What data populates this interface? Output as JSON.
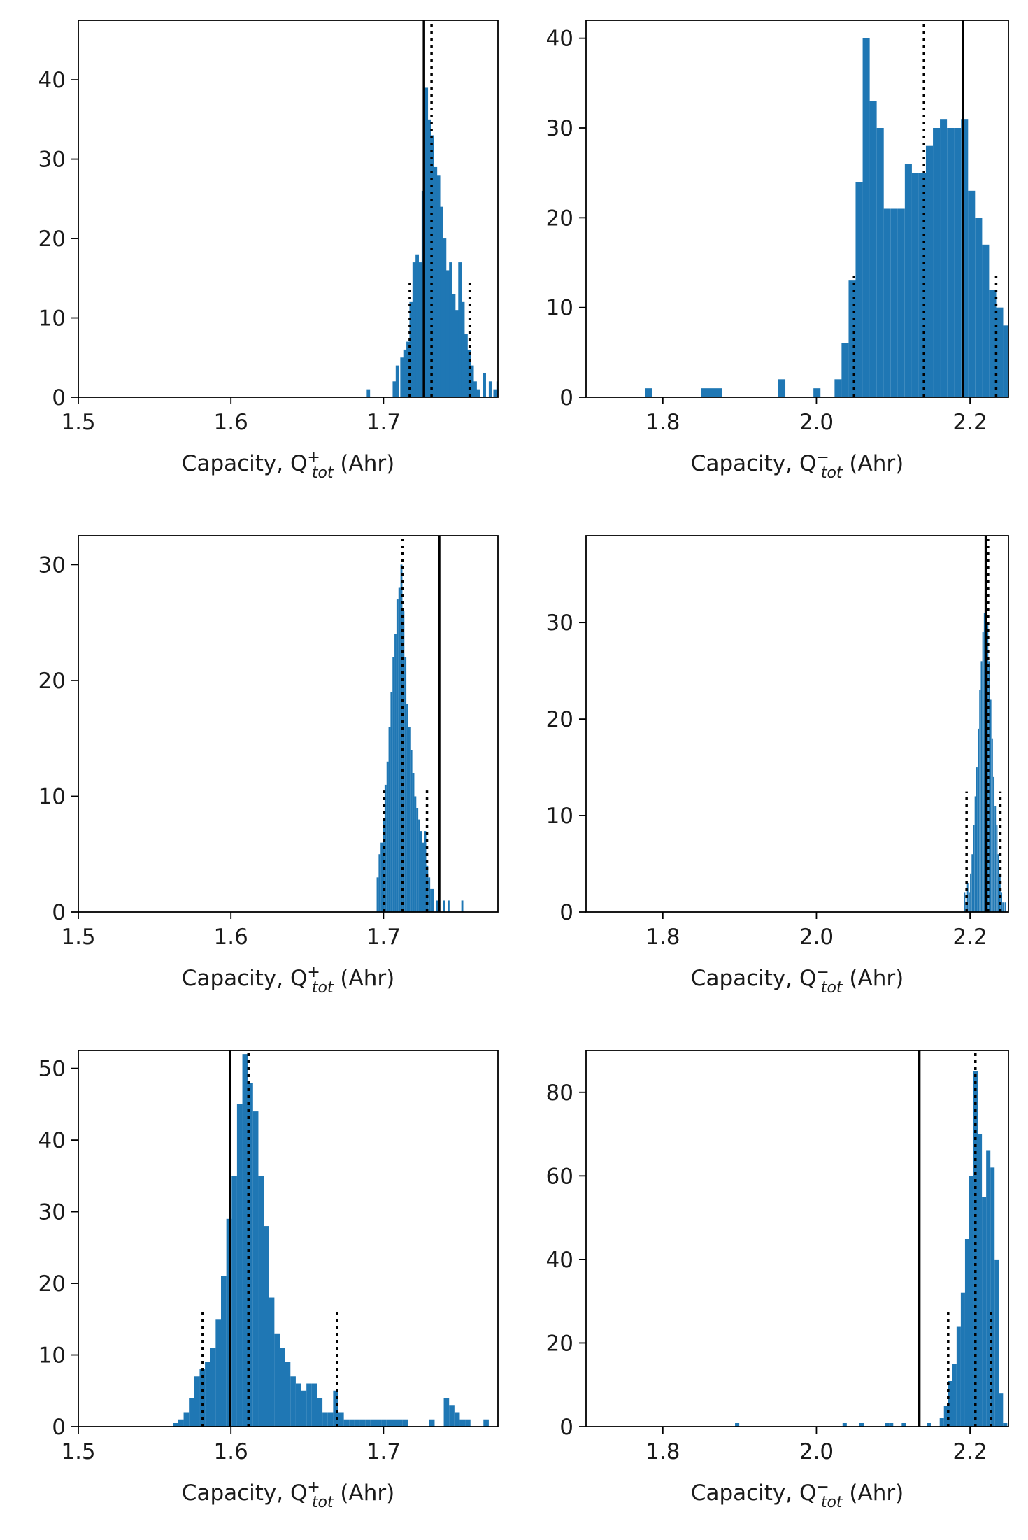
{
  "colors": {
    "bar": "#1f77b4",
    "line": "#000000",
    "frame": "#000000"
  },
  "chart_data": [
    {
      "type": "bar",
      "panel": "top-left",
      "xlabel": {
        "prefix": "Capacity, Q",
        "sup": "+",
        "sub": "tot",
        "suffix": " (Ahr)"
      },
      "xlim": [
        1.5,
        1.775
      ],
      "ylim": [
        0,
        47.5
      ],
      "xticks": [
        1.5,
        1.6,
        1.7
      ],
      "xtick_labels": [
        "1.5",
        "1.6",
        "1.7"
      ],
      "yticks": [
        0,
        10,
        20,
        30,
        40
      ],
      "ytick_labels": [
        "0",
        "10",
        "20",
        "30",
        "40"
      ],
      "bin_width": 0.0022,
      "bins": [
        [
          1.689,
          1
        ],
        [
          1.706,
          2
        ],
        [
          1.708,
          4
        ],
        [
          1.711,
          5
        ],
        [
          1.713,
          6
        ],
        [
          1.715,
          7
        ],
        [
          1.717,
          12
        ],
        [
          1.719,
          17
        ],
        [
          1.721,
          18
        ],
        [
          1.723,
          17
        ],
        [
          1.725,
          26
        ],
        [
          1.727,
          39
        ],
        [
          1.729,
          35
        ],
        [
          1.731,
          33
        ],
        [
          1.733,
          29
        ],
        [
          1.735,
          28
        ],
        [
          1.737,
          24
        ],
        [
          1.739,
          20
        ],
        [
          1.741,
          16
        ],
        [
          1.743,
          17
        ],
        [
          1.745,
          13
        ],
        [
          1.747,
          11
        ],
        [
          1.749,
          17
        ],
        [
          1.751,
          12
        ],
        [
          1.753,
          8
        ],
        [
          1.755,
          6
        ],
        [
          1.757,
          4
        ],
        [
          1.759,
          2
        ],
        [
          1.761,
          1
        ],
        [
          1.765,
          3
        ],
        [
          1.769,
          2
        ],
        [
          1.772,
          1
        ],
        [
          1.774,
          2
        ]
      ],
      "solid_lines": [
        {
          "x": 1.7265,
          "height": 47.5
        }
      ],
      "dotted_lines": [
        {
          "x": 1.7315,
          "height": 47.5
        },
        {
          "x": 1.7172,
          "height": 15
        },
        {
          "x": 1.7565,
          "height": 15
        }
      ]
    },
    {
      "type": "bar",
      "panel": "top-right",
      "xlabel": {
        "prefix": "Capacity, Q",
        "sup": "−",
        "sub": "tot",
        "suffix": " (Ahr)"
      },
      "xlim": [
        1.7,
        2.25
      ],
      "ylim": [
        0,
        42
      ],
      "xticks": [
        1.8,
        2.0,
        2.2
      ],
      "xtick_labels": [
        "1.8",
        "2.0",
        "2.2"
      ],
      "yticks": [
        0,
        10,
        20,
        30,
        40
      ],
      "ytick_labels": [
        "0",
        "10",
        "20",
        "30",
        "40"
      ],
      "bin_width": 0.00915,
      "bins": [
        [
          1.7765,
          1
        ],
        [
          1.8497,
          1
        ],
        [
          1.8589,
          1
        ],
        [
          1.868,
          1
        ],
        [
          1.9504,
          2
        ],
        [
          1.9961,
          1
        ],
        [
          2.0236,
          2
        ],
        [
          2.0327,
          6
        ],
        [
          2.0419,
          13
        ],
        [
          2.051,
          24
        ],
        [
          2.0602,
          40
        ],
        [
          2.0693,
          33
        ],
        [
          2.0785,
          30
        ],
        [
          2.0876,
          21
        ],
        [
          2.0968,
          21
        ],
        [
          2.1059,
          21
        ],
        [
          2.1151,
          26
        ],
        [
          2.1242,
          25
        ],
        [
          2.1334,
          25
        ],
        [
          2.1425,
          28
        ],
        [
          2.1517,
          30
        ],
        [
          2.1608,
          31
        ],
        [
          2.17,
          30
        ],
        [
          2.1791,
          30
        ],
        [
          2.1883,
          31
        ],
        [
          2.1974,
          23
        ],
        [
          2.2066,
          20
        ],
        [
          2.2157,
          17
        ],
        [
          2.2249,
          12
        ],
        [
          2.234,
          10
        ],
        [
          2.2432,
          8
        ]
      ],
      "solid_lines": [
        {
          "x": 2.191,
          "height": 42
        }
      ],
      "dotted_lines": [
        {
          "x": 2.14,
          "height": 42
        },
        {
          "x": 2.049,
          "height": 13.5
        },
        {
          "x": 2.234,
          "height": 13.5
        }
      ]
    },
    {
      "type": "bar",
      "panel": "middle-left",
      "xlabel": {
        "prefix": "Capacity, Q",
        "sup": "+",
        "sub": "tot",
        "suffix": " (Ahr)"
      },
      "xlim": [
        1.5,
        1.775
      ],
      "ylim": [
        0,
        32.5
      ],
      "xticks": [
        1.5,
        1.6,
        1.7
      ],
      "xtick_labels": [
        "1.5",
        "1.6",
        "1.7"
      ],
      "yticks": [
        0,
        10,
        20,
        30
      ],
      "ytick_labels": [
        "0",
        "10",
        "20",
        "30"
      ],
      "bin_width": 0.0013,
      "bins": [
        [
          1.6955,
          3
        ],
        [
          1.6968,
          5
        ],
        [
          1.6981,
          6
        ],
        [
          1.6994,
          8
        ],
        [
          1.7007,
          11
        ],
        [
          1.702,
          13
        ],
        [
          1.7033,
          16
        ],
        [
          1.7046,
          19
        ],
        [
          1.7059,
          22
        ],
        [
          1.7072,
          24
        ],
        [
          1.7085,
          27
        ],
        [
          1.7098,
          28
        ],
        [
          1.7111,
          30
        ],
        [
          1.7124,
          26
        ],
        [
          1.7137,
          22
        ],
        [
          1.715,
          18
        ],
        [
          1.7163,
          16
        ],
        [
          1.7176,
          14
        ],
        [
          1.7189,
          12
        ],
        [
          1.7202,
          10
        ],
        [
          1.7215,
          9
        ],
        [
          1.7228,
          8
        ],
        [
          1.7241,
          7
        ],
        [
          1.7254,
          6
        ],
        [
          1.7267,
          7
        ],
        [
          1.728,
          4
        ],
        [
          1.7293,
          3
        ],
        [
          1.7306,
          2
        ],
        [
          1.7319,
          2
        ],
        [
          1.7345,
          1
        ],
        [
          1.739,
          1
        ],
        [
          1.742,
          1
        ],
        [
          1.751,
          1
        ]
      ],
      "solid_lines": [
        {
          "x": 1.7365,
          "height": 32.5
        }
      ],
      "dotted_lines": [
        {
          "x": 1.7125,
          "height": 32.5
        },
        {
          "x": 1.7005,
          "height": 10.5
        },
        {
          "x": 1.7285,
          "height": 10.5
        }
      ]
    },
    {
      "type": "bar",
      "panel": "middle-right",
      "xlabel": {
        "prefix": "Capacity, Q",
        "sup": "−",
        "sub": "tot",
        "suffix": " (Ahr)"
      },
      "xlim": [
        1.7,
        2.25
      ],
      "ylim": [
        0,
        39
      ],
      "xticks": [
        1.8,
        2.0,
        2.2
      ],
      "xtick_labels": [
        "1.8",
        "2.0",
        "2.2"
      ],
      "yticks": [
        0,
        10,
        20,
        30
      ],
      "ytick_labels": [
        "0",
        "10",
        "20",
        "30"
      ],
      "bin_width": 0.0018,
      "bins": [
        [
          2.192,
          2
        ],
        [
          2.194,
          1
        ],
        [
          2.196,
          3
        ],
        [
          2.198,
          2
        ],
        [
          2.2,
          4
        ],
        [
          2.202,
          6
        ],
        [
          2.204,
          9
        ],
        [
          2.206,
          12
        ],
        [
          2.208,
          15
        ],
        [
          2.21,
          19
        ],
        [
          2.212,
          23
        ],
        [
          2.214,
          26
        ],
        [
          2.216,
          29
        ],
        [
          2.218,
          31
        ],
        [
          2.22,
          32
        ],
        [
          2.222,
          30
        ],
        [
          2.224,
          26
        ],
        [
          2.226,
          22
        ],
        [
          2.228,
          18
        ],
        [
          2.23,
          14
        ],
        [
          2.232,
          11
        ],
        [
          2.234,
          9
        ],
        [
          2.236,
          6
        ],
        [
          2.238,
          4
        ],
        [
          2.24,
          2
        ],
        [
          2.242,
          1
        ],
        [
          2.245,
          1
        ]
      ],
      "solid_lines": [
        {
          "x": 2.2205,
          "height": 39
        }
      ],
      "dotted_lines": [
        {
          "x": 2.2235,
          "height": 39
        },
        {
          "x": 2.1955,
          "height": 12.5
        },
        {
          "x": 2.2395,
          "height": 12.5
        }
      ]
    },
    {
      "type": "bar",
      "panel": "bottom-left",
      "xlabel": {
        "prefix": "Capacity, Q",
        "sup": "+",
        "sub": "tot",
        "suffix": " (Ahr)"
      },
      "xlim": [
        1.5,
        1.775
      ],
      "ylim": [
        0,
        52.5
      ],
      "xticks": [
        1.5,
        1.6,
        1.7
      ],
      "xtick_labels": [
        "1.5",
        "1.6",
        "1.7"
      ],
      "yticks": [
        0,
        10,
        20,
        30,
        40,
        50
      ],
      "ytick_labels": [
        "0",
        "10",
        "20",
        "30",
        "40",
        "50"
      ],
      "bin_width": 0.0035,
      "bins": [
        [
          1.562,
          0.5
        ],
        [
          1.5655,
          1
        ],
        [
          1.569,
          2
        ],
        [
          1.5725,
          4
        ],
        [
          1.576,
          7
        ],
        [
          1.5795,
          8
        ],
        [
          1.583,
          9
        ],
        [
          1.5865,
          11
        ],
        [
          1.59,
          15
        ],
        [
          1.5935,
          21
        ],
        [
          1.597,
          29
        ],
        [
          1.6005,
          35
        ],
        [
          1.604,
          45
        ],
        [
          1.6075,
          52
        ],
        [
          1.611,
          48
        ],
        [
          1.6145,
          44
        ],
        [
          1.618,
          35
        ],
        [
          1.6215,
          28
        ],
        [
          1.625,
          18
        ],
        [
          1.6285,
          13
        ],
        [
          1.632,
          11
        ],
        [
          1.6355,
          9
        ],
        [
          1.639,
          7
        ],
        [
          1.6425,
          6
        ],
        [
          1.646,
          5
        ],
        [
          1.6495,
          6
        ],
        [
          1.653,
          6
        ],
        [
          1.6565,
          4
        ],
        [
          1.66,
          2
        ],
        [
          1.6635,
          2
        ],
        [
          1.667,
          5
        ],
        [
          1.6705,
          2
        ],
        [
          1.674,
          1
        ],
        [
          1.6775,
          1
        ],
        [
          1.681,
          1
        ],
        [
          1.6845,
          1
        ],
        [
          1.688,
          1
        ],
        [
          1.6915,
          1
        ],
        [
          1.695,
          1
        ],
        [
          1.6985,
          1
        ],
        [
          1.702,
          1
        ],
        [
          1.7055,
          1
        ],
        [
          1.709,
          1
        ],
        [
          1.7125,
          1
        ],
        [
          1.73,
          1
        ],
        [
          1.7395,
          4
        ],
        [
          1.743,
          3
        ],
        [
          1.7465,
          2
        ],
        [
          1.75,
          1
        ],
        [
          1.7535,
          1
        ],
        [
          1.7655,
          1
        ]
      ],
      "solid_lines": [
        {
          "x": 1.5995,
          "height": 52.5
        }
      ],
      "dotted_lines": [
        {
          "x": 1.6115,
          "height": 52.5
        },
        {
          "x": 1.5815,
          "height": 16.5
        },
        {
          "x": 1.6695,
          "height": 16.5
        }
      ]
    },
    {
      "type": "bar",
      "panel": "bottom-right",
      "xlabel": {
        "prefix": "Capacity, Q",
        "sup": "−",
        "sub": "tot",
        "suffix": " (Ahr)"
      },
      "xlim": [
        1.7,
        2.25
      ],
      "ylim": [
        0,
        90
      ],
      "xticks": [
        1.8,
        2.0,
        2.2
      ],
      "xtick_labels": [
        "1.8",
        "2.0",
        "2.2"
      ],
      "yticks": [
        0,
        20,
        40,
        60,
        80
      ],
      "ytick_labels": [
        "0",
        "20",
        "40",
        "60",
        "80"
      ],
      "bin_width": 0.0055,
      "bins": [
        [
          1.894,
          1
        ],
        [
          2.034,
          1
        ],
        [
          2.056,
          1
        ],
        [
          2.089,
          1
        ],
        [
          2.0945,
          1
        ],
        [
          2.111,
          1
        ],
        [
          2.144,
          1
        ],
        [
          2.1605,
          2
        ],
        [
          2.166,
          5
        ],
        [
          2.1715,
          11
        ],
        [
          2.177,
          15
        ],
        [
          2.1825,
          24
        ],
        [
          2.188,
          32
        ],
        [
          2.1935,
          45
        ],
        [
          2.199,
          60
        ],
        [
          2.2045,
          85
        ],
        [
          2.21,
          70
        ],
        [
          2.2155,
          55
        ],
        [
          2.221,
          66
        ],
        [
          2.2265,
          62
        ],
        [
          2.232,
          40
        ],
        [
          2.2375,
          8
        ],
        [
          2.243,
          1
        ]
      ],
      "solid_lines": [
        {
          "x": 2.134,
          "height": 90
        }
      ],
      "dotted_lines": [
        {
          "x": 2.207,
          "height": 90
        },
        {
          "x": 2.1715,
          "height": 28
        },
        {
          "x": 2.2275,
          "height": 28
        }
      ]
    }
  ]
}
